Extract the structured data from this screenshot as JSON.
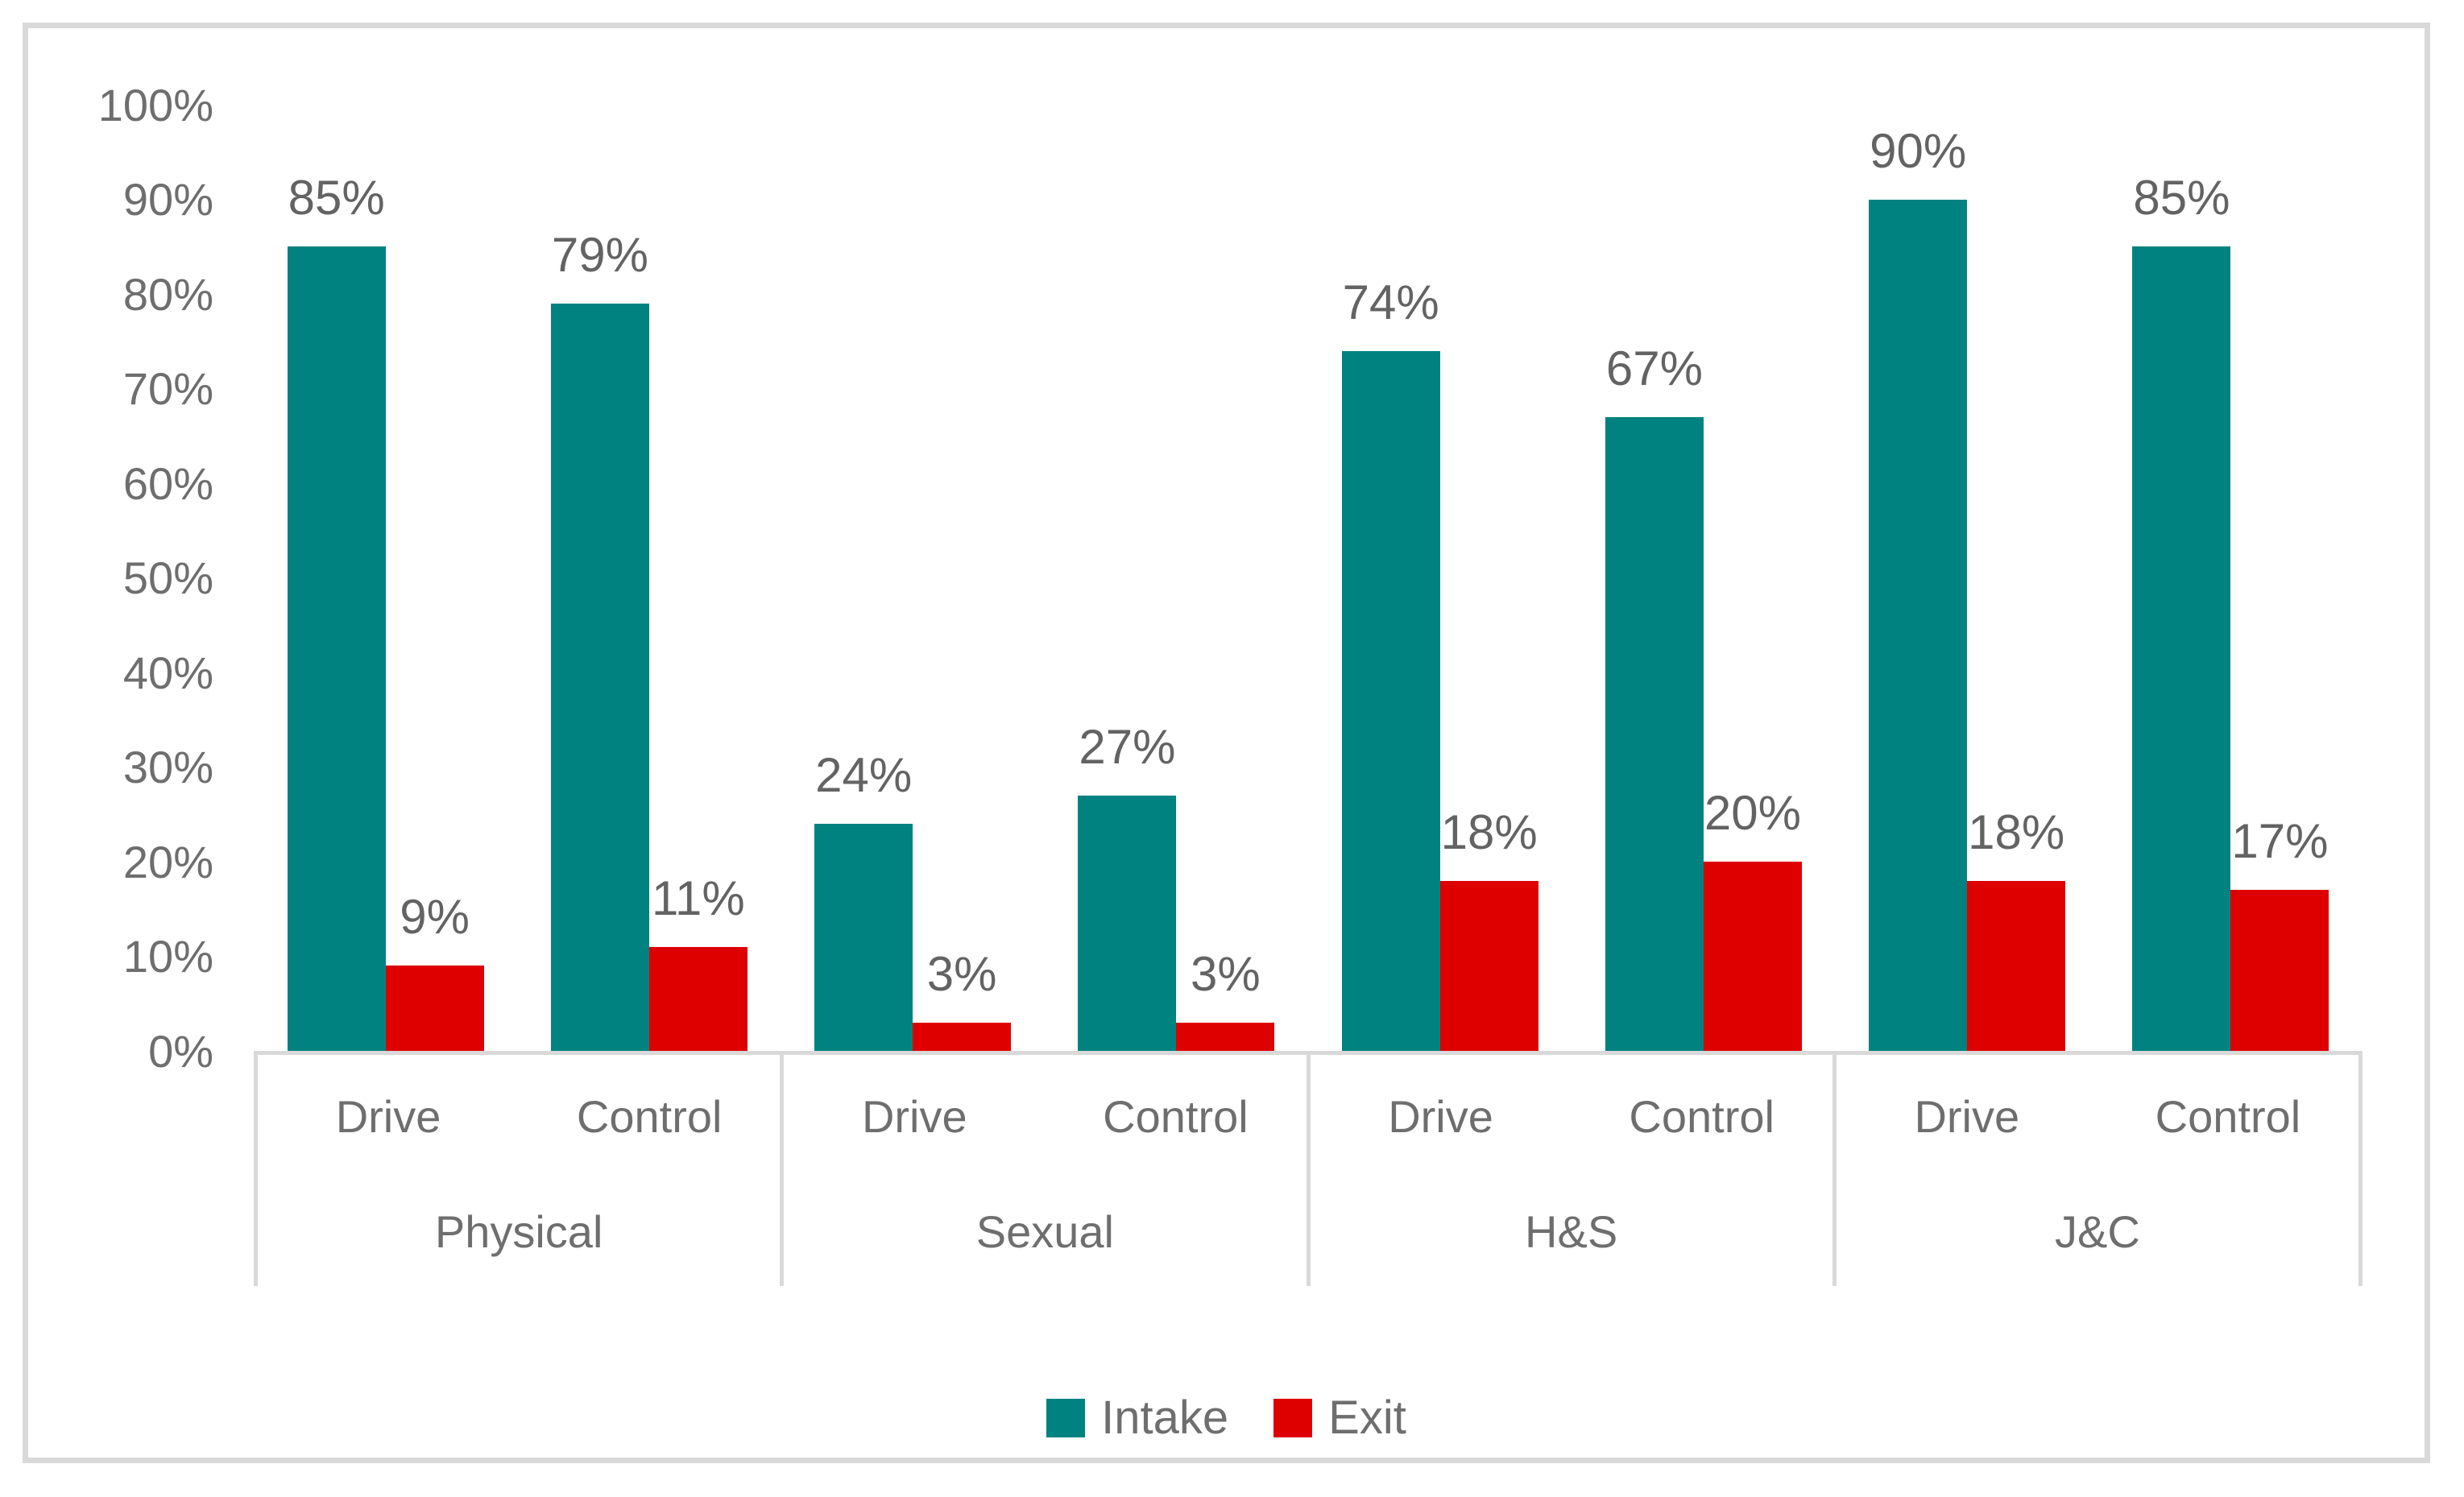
{
  "chart_data": {
    "type": "bar",
    "title": "",
    "xlabel": "",
    "ylabel": "",
    "y_axis": {
      "min": 0,
      "max": 100,
      "tick_step": 10,
      "tick_labels": [
        "0%",
        "10%",
        "20%",
        "30%",
        "40%",
        "50%",
        "60%",
        "70%",
        "80%",
        "90%",
        "100%"
      ],
      "gridlines": false
    },
    "legend_position": "bottom",
    "legend": [
      {
        "label": "Intake",
        "color": "#008280"
      },
      {
        "label": "Exit",
        "color": "#de0000"
      }
    ],
    "colors": {
      "intake": "#008280",
      "exit": "#de0000",
      "axis_line": "#d9d9d9",
      "text": "#6e6e6e"
    },
    "data_label_suffix": "%",
    "groups": [
      {
        "label": "Physical",
        "clusters": [
          {
            "label": "Drive",
            "intake": 85,
            "exit": 9
          },
          {
            "label": "Control",
            "intake": 79,
            "exit": 11
          }
        ]
      },
      {
        "label": "Sexual",
        "clusters": [
          {
            "label": "Drive",
            "intake": 24,
            "exit": 3
          },
          {
            "label": "Control",
            "intake": 27,
            "exit": 3
          }
        ]
      },
      {
        "label": "H&S",
        "clusters": [
          {
            "label": "Drive",
            "intake": 74,
            "exit": 18
          },
          {
            "label": "Control",
            "intake": 67,
            "exit": 20
          }
        ]
      },
      {
        "label": "J&C",
        "clusters": [
          {
            "label": "Drive",
            "intake": 90,
            "exit": 18
          },
          {
            "label": "Control",
            "intake": 85,
            "exit": 17
          }
        ]
      }
    ]
  }
}
